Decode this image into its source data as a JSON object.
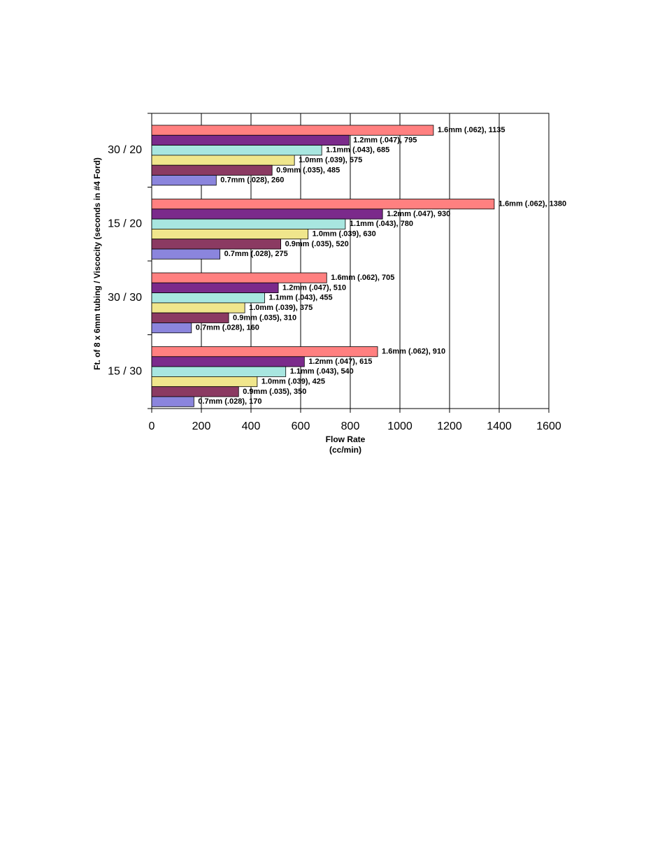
{
  "chart_data": {
    "type": "bar",
    "orientation": "horizontal",
    "title": "",
    "xlabel": "Flow Rate",
    "xlabel_unit": "(cc/min)",
    "ylabel": "Ft. of 8 x 6mm tubing / Viscocity (seconds in #4 Ford)",
    "xlim": [
      0,
      1600
    ],
    "xticks": [
      0,
      200,
      400,
      600,
      800,
      1000,
      1200,
      1400,
      1600
    ],
    "grid": true,
    "legend": "none",
    "categories": [
      "30 / 20",
      "15 / 20",
      "30 / 30",
      "15 / 30"
    ],
    "series": [
      {
        "name": "1.6mm (.062)",
        "color": "#ff8080",
        "values": [
          1135,
          1380,
          705,
          910
        ]
      },
      {
        "name": "1.2mm (.047)",
        "color": "#7b2a8b",
        "values": [
          795,
          930,
          510,
          615
        ]
      },
      {
        "name": "1.1mm (.043)",
        "color": "#a8e6e0",
        "values": [
          685,
          780,
          455,
          540
        ]
      },
      {
        "name": "1.0mm (.039)",
        "color": "#f0e68c",
        "values": [
          575,
          630,
          375,
          425
        ]
      },
      {
        "name": "0.9mm (.035)",
        "color": "#8b3a62",
        "values": [
          485,
          520,
          310,
          350
        ]
      },
      {
        "name": "0.7mm (.028)",
        "color": "#8b85dd",
        "values": [
          260,
          275,
          160,
          170
        ]
      }
    ]
  }
}
